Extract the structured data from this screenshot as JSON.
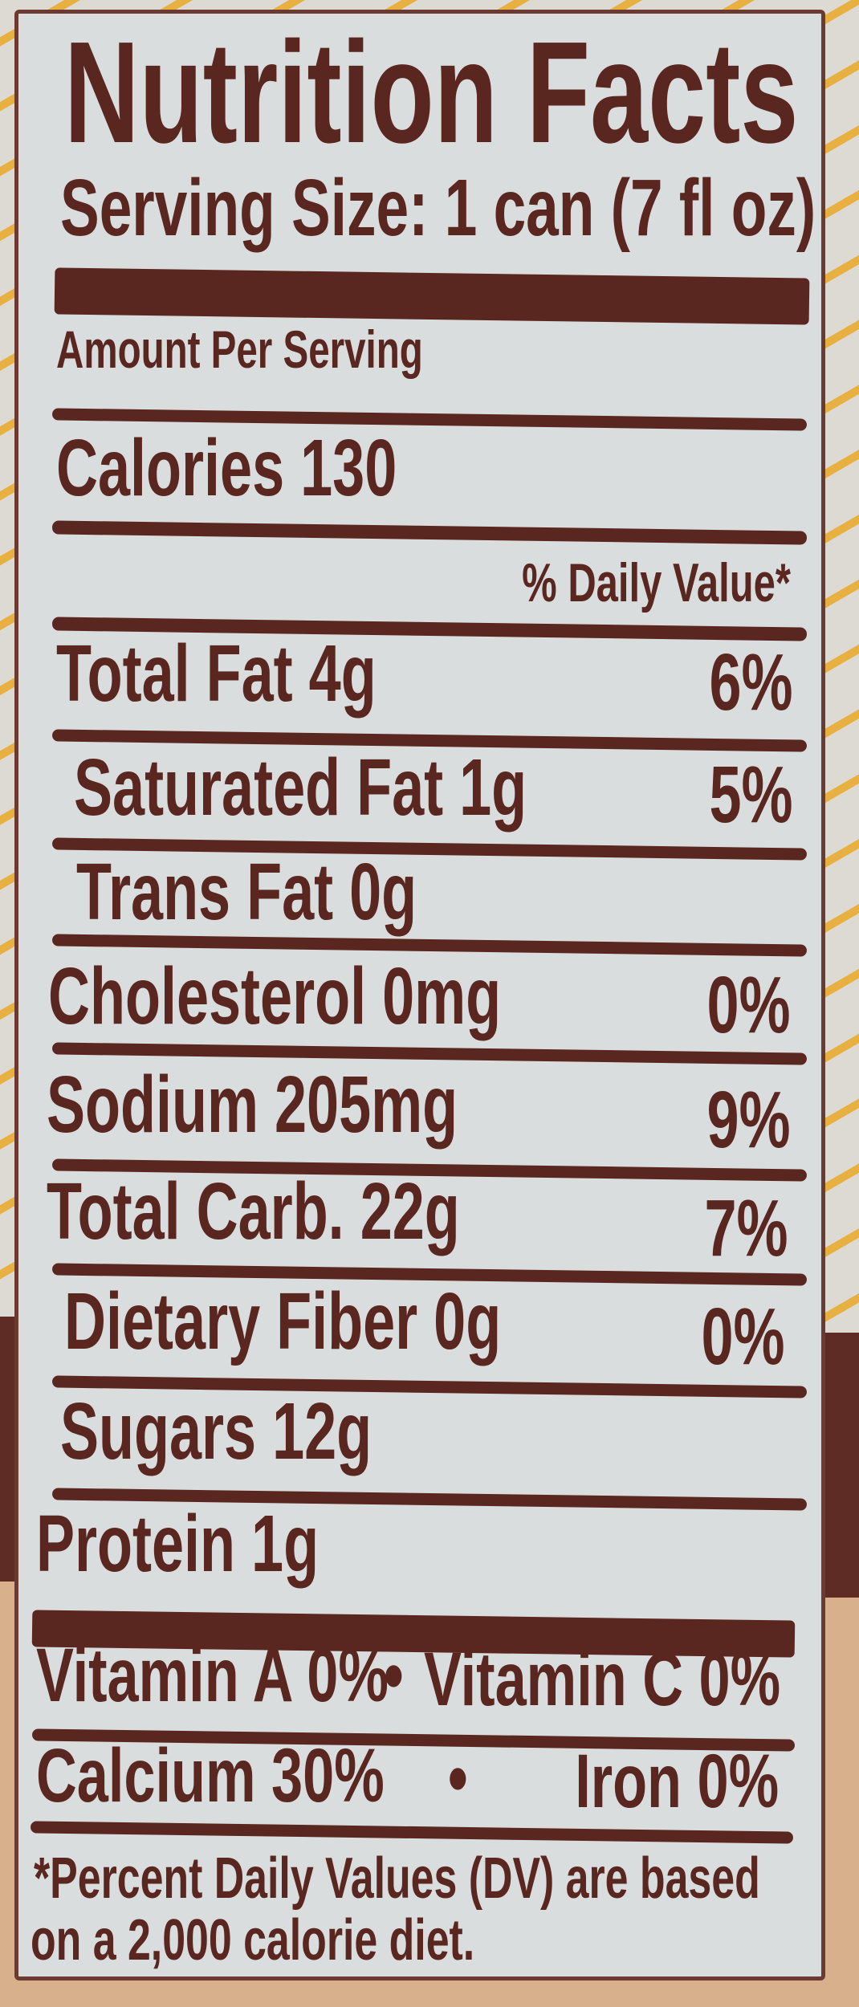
{
  "label": {
    "title": "Nutrition Facts",
    "serving_size": "Serving Size: 1 can (7 fl oz)",
    "amount_per_serving": "Amount Per Serving",
    "calories": "Calories 130",
    "daily_value_header": "% Daily Value*",
    "nutrients": [
      {
        "label": "Total Fat 4g",
        "dv": "6%"
      },
      {
        "label": "Saturated Fat 1g",
        "dv": "5%"
      },
      {
        "label": "Trans Fat 0g",
        "dv": ""
      },
      {
        "label": "Cholesterol 0mg",
        "dv": "0%"
      },
      {
        "label": "Sodium 205mg",
        "dv": "9%"
      },
      {
        "label": "Total Carb. 22g",
        "dv": "7%"
      },
      {
        "label": "Dietary Fiber 0g",
        "dv": "0%"
      },
      {
        "label": "Sugars 12g",
        "dv": ""
      },
      {
        "label": "Protein 1g",
        "dv": ""
      }
    ],
    "vitamins": [
      {
        "left": "Vitamin A 0%",
        "sep": "•",
        "right": "Vitamin C 0%"
      },
      {
        "left": "Calcium 30%",
        "sep": "•",
        "right": "Iron 0%"
      }
    ],
    "footnote": [
      "*Percent Daily Values (DV) are based",
      "on a 2,000 calorie diet."
    ]
  },
  "colors": {
    "ink": "#5a2620",
    "label_bg": "#d9dddd",
    "stripe": "#e8b040",
    "can_brown": "#5e2c24",
    "can_tan": "#d8b08c"
  }
}
